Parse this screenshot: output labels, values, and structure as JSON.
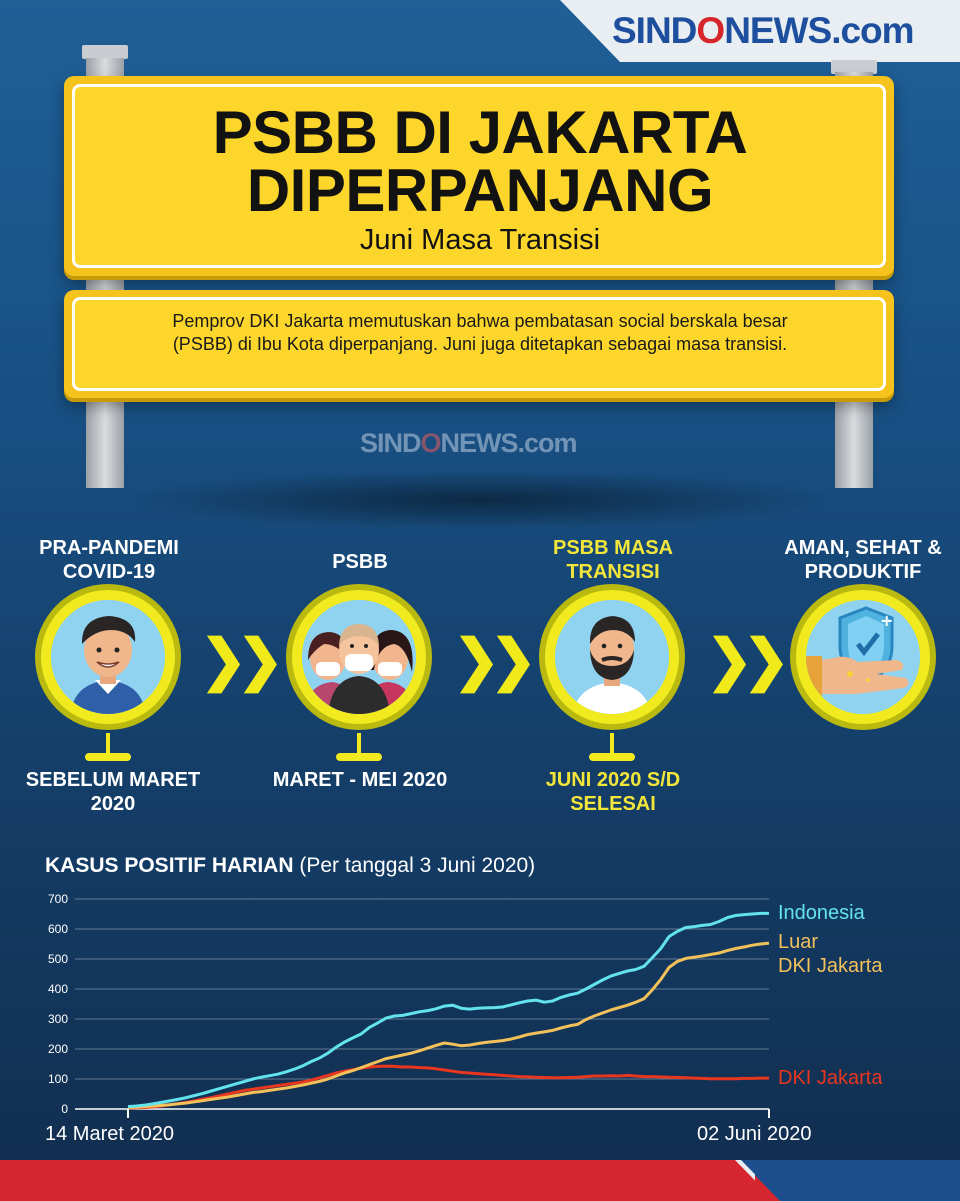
{
  "brand": {
    "logo_part1": "SIND",
    "logo_o": "O",
    "logo_part2": "NEWS",
    "logo_dot": ".com"
  },
  "sign": {
    "title_line1": "PSBB DI JAKARTA",
    "title_line2": "DIPERPANJANG",
    "subtitle": "Juni Masa Transisi",
    "description": "Pemprov DKI Jakarta memutuskan bahwa pembatasan social berskala besar (PSBB) di Ibu Kota diperpanjang. Juni juga ditetapkan sebagai masa transisi."
  },
  "timeline": [
    {
      "title": "PRA-PANDEMI COVID-19",
      "period": "SEBELUM MARET 2020",
      "highlight": false,
      "icon": "smiling-man-icon"
    },
    {
      "title": "PSBB",
      "period": "MARET - MEI 2020",
      "highlight": false,
      "icon": "masked-people-icon"
    },
    {
      "title": "PSBB MASA TRANSISI",
      "period": "JUNI 2020 S/D SELESAI",
      "highlight": true,
      "icon": "bearded-man-icon"
    },
    {
      "title": "AMAN, SEHAT & PRODUKTIF",
      "period": "",
      "highlight": false,
      "icon": "shield-hand-icon"
    }
  ],
  "chart_heading": {
    "bold": "KASUS POSITIF HARIAN",
    "normal": "(Per tanggal 3 Juni 2020)"
  },
  "chart_data": {
    "type": "line",
    "title": "KASUS POSITIF HARIAN",
    "subtitle": "(Per tanggal 3 Juni 2020)",
    "x_start_label": "14 Maret 2020",
    "x_end_label": "02 Juni 2020",
    "ylim": [
      0,
      700
    ],
    "yticks": [
      0,
      100,
      200,
      300,
      400,
      500,
      600,
      700
    ],
    "grid": true,
    "colors": {
      "Indonesia": "#62e3ee",
      "Luar DKI Jakarta": "#f3c15a",
      "DKI Jakarta": "#e8361f"
    },
    "series": [
      {
        "name": "Indonesia",
        "values": [
          8,
          10,
          13,
          17,
          22,
          27,
          32,
          38,
          45,
          52,
          60,
          68,
          76,
          84,
          92,
          100,
          106,
          111,
          116,
          124,
          133,
          144,
          158,
          170,
          186,
          206,
          223,
          237,
          250,
          272,
          287,
          303,
          310,
          312,
          318,
          324,
          328,
          334,
          343,
          346,
          336,
          333,
          336,
          337,
          338,
          340,
          347,
          354,
          360,
          363,
          356,
          360,
          372,
          380,
          386,
          400,
          415,
          430,
          443,
          452,
          460,
          465,
          476,
          505,
          535,
          575,
          592,
          605,
          608,
          612,
          615,
          625,
          638,
          645,
          648,
          650,
          652,
          652
        ]
      },
      {
        "name": "Luar DKI Jakarta",
        "values": [
          5,
          6,
          8,
          10,
          12,
          14,
          17,
          20,
          24,
          28,
          32,
          36,
          40,
          45,
          50,
          55,
          58,
          62,
          66,
          70,
          75,
          80,
          86,
          92,
          100,
          110,
          120,
          128,
          138,
          148,
          158,
          168,
          174,
          180,
          186,
          194,
          203,
          212,
          220,
          216,
          211,
          213,
          218,
          222,
          225,
          228,
          233,
          240,
          248,
          253,
          257,
          262,
          270,
          277,
          282,
          298,
          310,
          320,
          330,
          338,
          346,
          356,
          368,
          398,
          432,
          472,
          492,
          502,
          506,
          510,
          515,
          520,
          528,
          535,
          540,
          546,
          550,
          553
        ]
      },
      {
        "name": "DKI Jakarta",
        "values": [
          3,
          4,
          5,
          7,
          10,
          14,
          18,
          22,
          27,
          33,
          38,
          44,
          50,
          56,
          62,
          66,
          70,
          74,
          78,
          82,
          86,
          90,
          96,
          104,
          112,
          120,
          126,
          131,
          136,
          140,
          142,
          143,
          142,
          140,
          140,
          138,
          137,
          134,
          130,
          126,
          122,
          120,
          118,
          116,
          114,
          112,
          110,
          108,
          107,
          106,
          105,
          104,
          104,
          105,
          106,
          108,
          110,
          110,
          111,
          110,
          112,
          110,
          108,
          108,
          107,
          106,
          105,
          104,
          103,
          102,
          101,
          101,
          101,
          101,
          102,
          102,
          103,
          103
        ]
      }
    ]
  },
  "legend": {
    "indonesia": "Indonesia",
    "luar_line1": "Luar",
    "luar_line2": "DKI Jakarta",
    "dki": "DKI Jakarta"
  }
}
